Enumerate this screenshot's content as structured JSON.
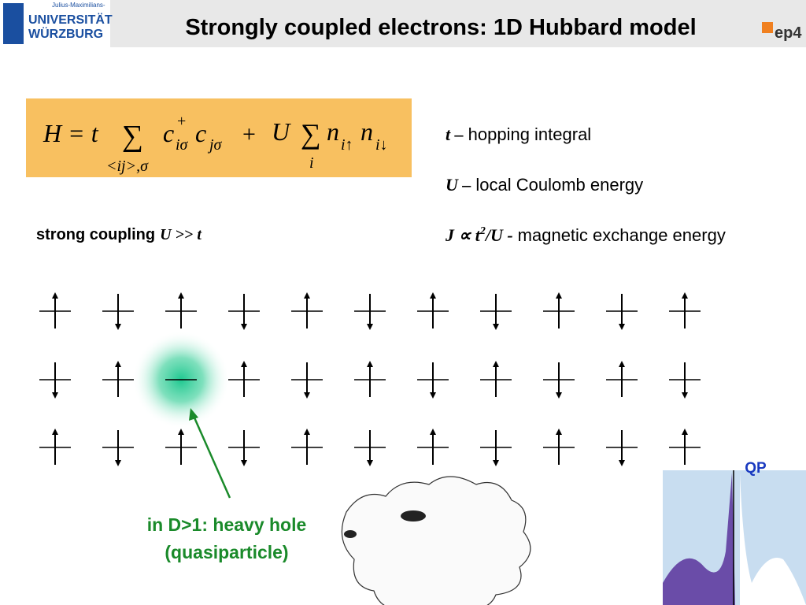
{
  "header": {
    "logo_top": "Julius-Maximilians-",
    "logo_line1": "UNIVERSITÄT",
    "logo_line2": "WÜRZBURG",
    "title": "Strongly coupled electrons: 1D Hubbard model",
    "badge": "ep4"
  },
  "formula": {
    "lhs": "H = t",
    "sum1": "∑",
    "sum1_sub": "<ij>,σ",
    "c1": "c",
    "c1_sup": "+",
    "c1_sub": "iσ",
    "c2": "c",
    "c2_sub": "jσ",
    "plus": "+",
    "u": "U",
    "sum2": "∑",
    "sum2_sub": "i",
    "n1": "n",
    "n1_sub": "i↑",
    "n2": "n",
    "n2_sub": "i↓"
  },
  "definitions": [
    {
      "symbol": "t –",
      "text": "hopping integral"
    },
    {
      "symbol": "U –",
      "text": "local Coulomb energy"
    },
    {
      "symbol": "J ∝ t",
      "sup": "2",
      "symbol_end": "/U -",
      "text": "magnetic exchange energy"
    }
  ],
  "coupling": {
    "text": "strong coupling",
    "symbol": "U >> t"
  },
  "annotation": {
    "line1": "in D>1: heavy hole",
    "line2": "(quasiparticle)"
  },
  "spectrum": {
    "label": "QP"
  }
}
